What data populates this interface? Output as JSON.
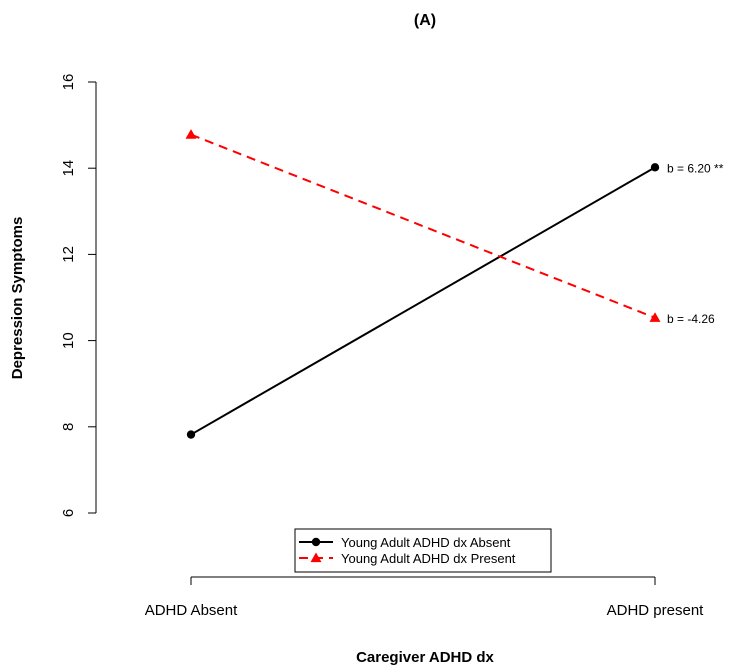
{
  "chart_data": {
    "type": "line",
    "title": "(A)",
    "xlabel": "Caregiver ADHD dx",
    "ylabel": "Depression Symptoms",
    "categories": [
      "ADHD Absent",
      "ADHD present"
    ],
    "ylim": [
      6,
      16
    ],
    "yticks": [
      6,
      8,
      10,
      12,
      14,
      16
    ],
    "grid": false,
    "series": [
      {
        "name": "Young Adult ADHD dx Absent",
        "values": [
          7.82,
          14.02
        ],
        "color": "#000000",
        "line_style": "solid",
        "marker": "circle",
        "annotation": "b = 6.20 **"
      },
      {
        "name": "Young Adult ADHD dx Present",
        "values": [
          14.78,
          10.53
        ],
        "color": "#ff0000",
        "line_style": "dashed",
        "marker": "triangle",
        "annotation": "b = -4.26"
      }
    ],
    "legend_position": "bottom-center"
  }
}
